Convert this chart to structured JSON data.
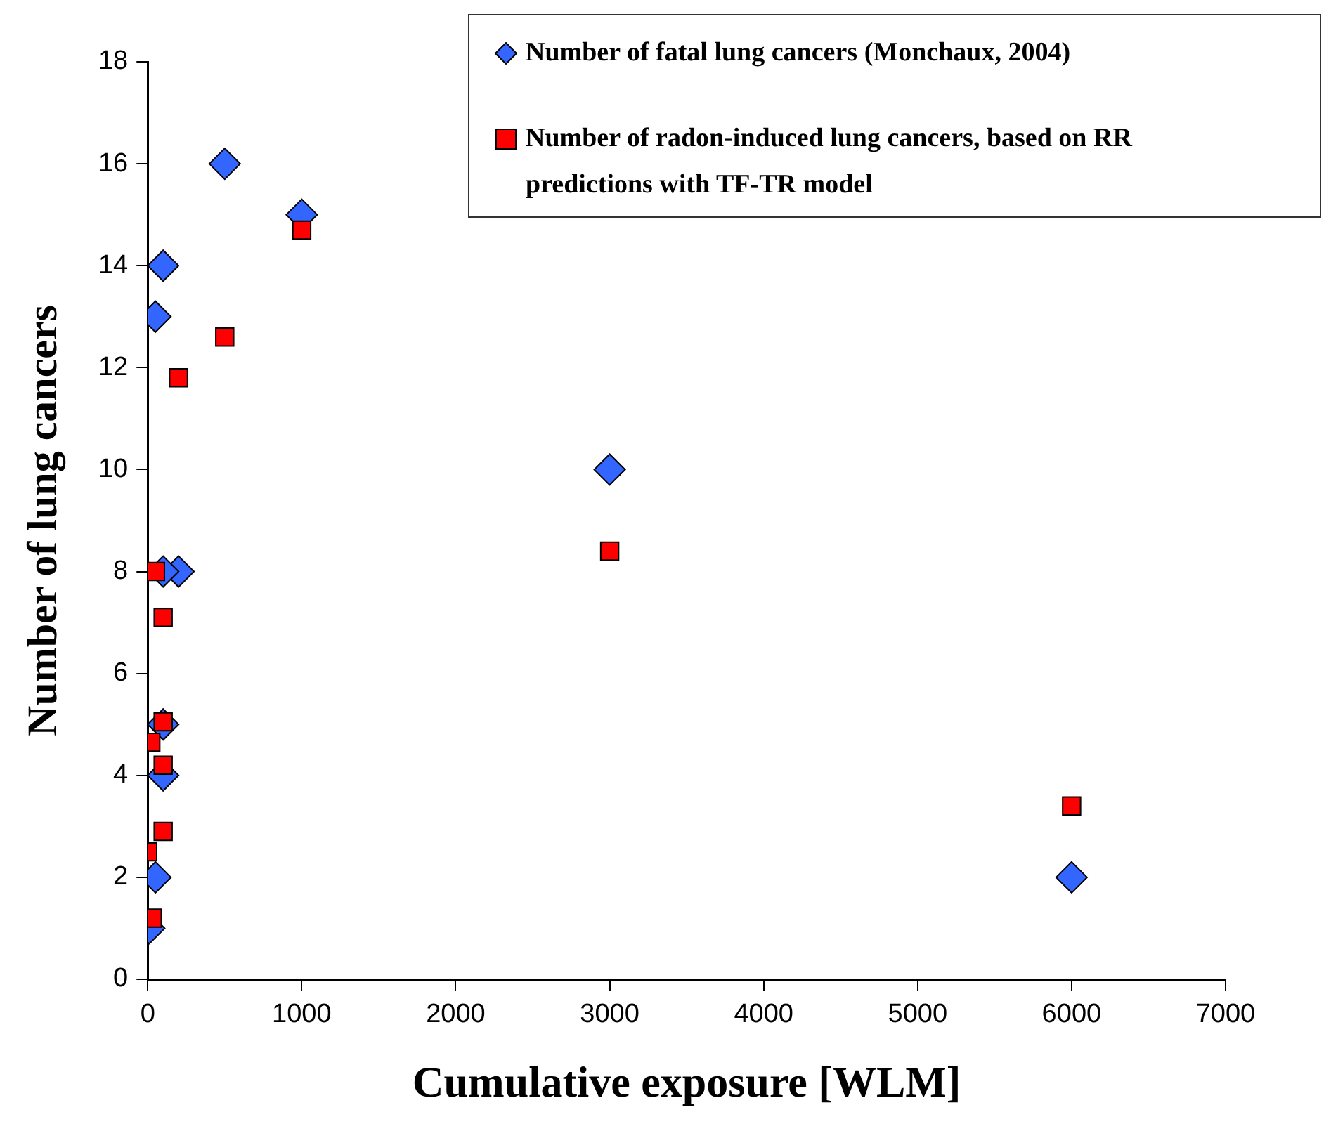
{
  "chart_data": {
    "type": "scatter",
    "xlabel": "Cumulative exposure [WLM]",
    "ylabel": "Number of lung cancers",
    "xlim": [
      0,
      7000
    ],
    "xticks": [
      0,
      1000,
      2000,
      3000,
      4000,
      5000,
      6000,
      7000
    ],
    "ylim": [
      0,
      18
    ],
    "yticks": [
      0,
      2,
      4,
      6,
      8,
      10,
      12,
      14,
      16,
      18
    ],
    "grid": false,
    "legend": "top right",
    "series": [
      {
        "name": "Number of fatal lung cancers (Monchaux, 2004)",
        "color": "#3366ff",
        "marker": "diamond",
        "x": [
          500,
          1000,
          100,
          50,
          200,
          100,
          100,
          100,
          50,
          10,
          3000,
          6000
        ],
        "values": [
          16,
          15,
          14,
          13,
          8,
          8,
          5,
          4,
          2,
          1,
          10,
          2
        ]
      },
      {
        "name": "Number of radon-induced lung cancers, based on RR predictions with TF-TR model",
        "color": "#ff0000",
        "marker": "square",
        "x": [
          1000,
          500,
          200,
          50,
          100,
          100,
          20,
          100,
          100,
          0,
          30,
          3000,
          6000
        ],
        "values": [
          14.7,
          12.6,
          11.8,
          8.0,
          7.1,
          5.05,
          4.65,
          4.2,
          2.9,
          2.5,
          1.2,
          8.4,
          3.4
        ]
      }
    ]
  }
}
